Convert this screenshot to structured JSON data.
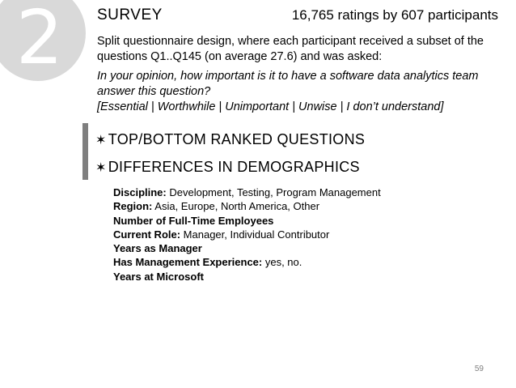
{
  "slide": {
    "number": "2",
    "title": "SURVEY",
    "ratings": "16,765 ratings by 607 participants",
    "design_text": "Split questionnaire design, where each participant received a subset of the questions Q1..Q145 (on average 27.6) and was asked:",
    "question_line1": "In your opinion, how important is it to have a software data analytics team answer this question?",
    "question_line2": "[Essential | Worthwhile | Unimportant | Unwise | I don’t understand]",
    "bullets": [
      {
        "icon": "star-icon",
        "glyph": "✶",
        "label": "TOP/BOTTOM RANKED QUESTIONS"
      },
      {
        "icon": "star-icon",
        "glyph": "✶",
        "label": "DIFFERENCES IN DEMOGRAPHICS"
      }
    ],
    "demographics": [
      {
        "label": "Discipline:",
        "value": " Development, Testing, Program Management"
      },
      {
        "label": "Region:",
        "value": " Asia, Europe, North America, Other"
      },
      {
        "label": "Number of Full-Time Employees",
        "value": ""
      },
      {
        "label": "Current Role:",
        "value": " Manager, Individual Contributor"
      },
      {
        "label": "Years as Manager",
        "value": ""
      },
      {
        "label": "Has Management Experience:",
        "value": " yes, no."
      },
      {
        "label": "Years at Microsoft",
        "value": ""
      }
    ],
    "page_number": "59"
  }
}
